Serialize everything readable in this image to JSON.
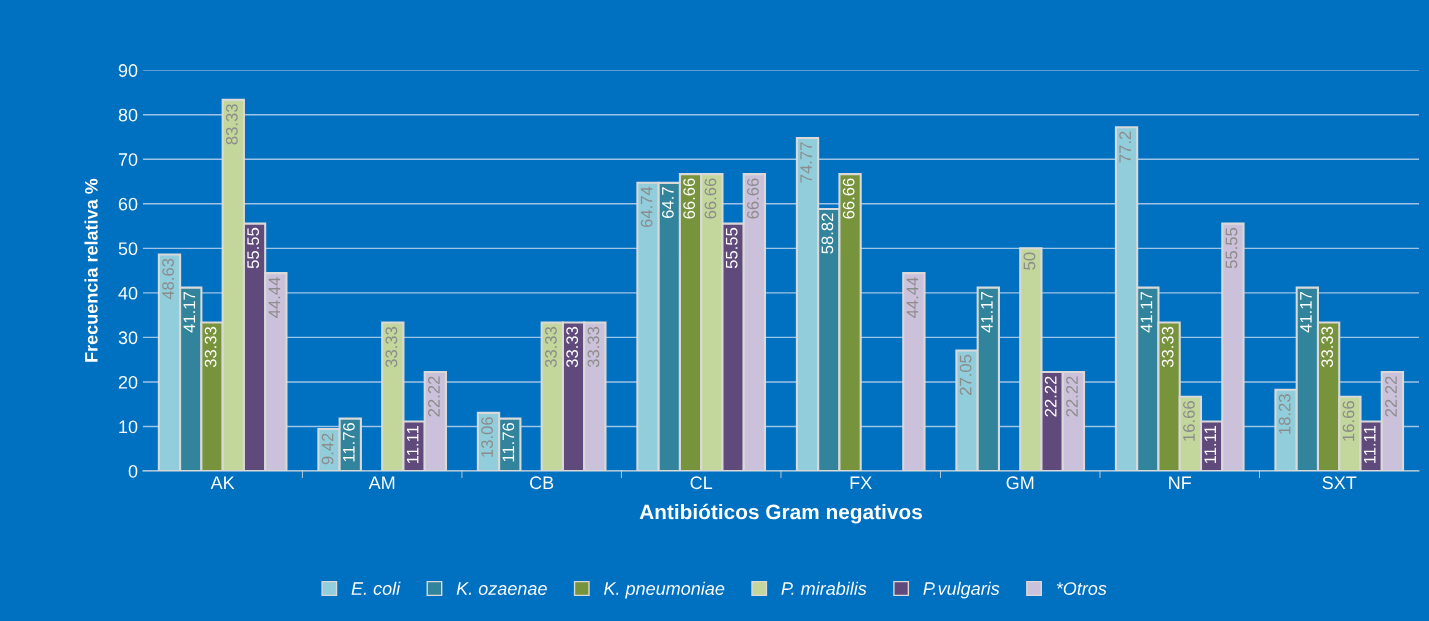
{
  "chart_data": {
    "type": "bar",
    "xlabel": "Antibióticos Gram negativos",
    "ylabel": "Frecuencia relativa %",
    "categories": [
      "AK",
      "AM",
      "CB",
      "CL",
      "FX",
      "GM",
      "NF",
      "SXT"
    ],
    "ylim": [
      0,
      90
    ],
    "yticks": [
      0,
      10,
      20,
      30,
      40,
      50,
      60,
      70,
      80,
      90
    ],
    "grid": "y",
    "legend": "bottom",
    "series": [
      {
        "name": "E. coli",
        "color": "#92cddc",
        "values": [
          48.63,
          9.42,
          13.06,
          64.74,
          74.77,
          27.05,
          77.2,
          18.23
        ],
        "value_labels": [
          "48.63",
          "9.42",
          "13.06",
          "64.74",
          "74.77",
          "27.05",
          "77.2",
          "18.23"
        ]
      },
      {
        "name": "K. ozaenae",
        "color": "#31849b",
        "values": [
          41.17,
          11.76,
          11.76,
          64.7,
          58.82,
          41.17,
          41.17,
          41.17
        ],
        "value_labels": [
          "41.17",
          "11.76",
          "11.76",
          "64.7",
          "58.82",
          "41.17",
          "41.17",
          "41.17"
        ]
      },
      {
        "name": "K. pneumoniae",
        "color": "#77933c",
        "values": [
          33.33,
          0,
          0,
          66.66,
          66.66,
          0,
          33.33,
          33.33
        ],
        "value_labels": [
          "33.33",
          null,
          null,
          "66.66",
          "66.66",
          null,
          "33.33",
          "33.33"
        ]
      },
      {
        "name": "P. mirabilis",
        "color": "#c3d69b",
        "values": [
          83.33,
          33.33,
          33.33,
          66.66,
          0,
          50,
          16.66,
          16.66
        ],
        "value_labels": [
          "83.33",
          "33.33",
          "33.33",
          "66.66",
          null,
          "50",
          "16.66",
          "16.66"
        ]
      },
      {
        "name": "P.vulgaris",
        "color": "#604a7b",
        "values": [
          55.55,
          11.11,
          33.33,
          55.55,
          0,
          22.22,
          11.11,
          11.11
        ],
        "value_labels": [
          "55.55",
          "11.11",
          "33.33",
          "55.55",
          null,
          "22.22",
          "11.11",
          "11.11"
        ]
      },
      {
        "name": "*Otros",
        "color": "#ccc1da",
        "values": [
          44.44,
          22.22,
          33.33,
          66.66,
          44.44,
          22.22,
          55.55,
          22.22
        ],
        "value_labels": [
          "44.44",
          "22.22",
          "33.33",
          "66.66",
          "44.44",
          "22.22",
          "55.55",
          "22.22"
        ]
      }
    ]
  }
}
